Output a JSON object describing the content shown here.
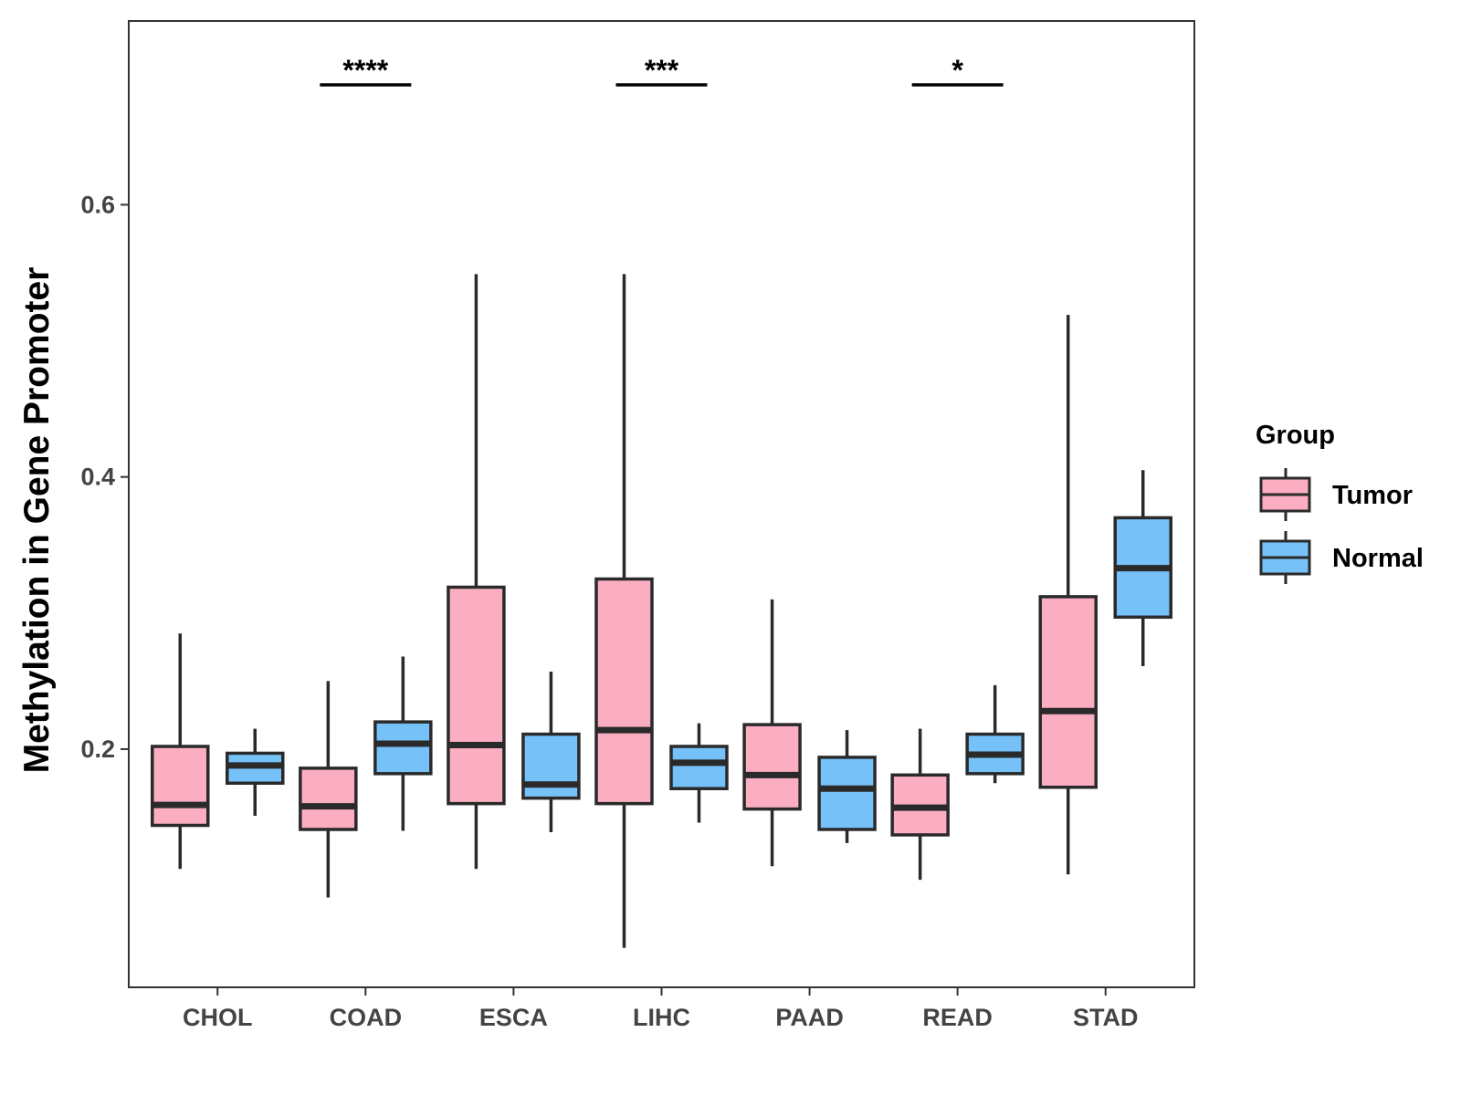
{
  "chart_data": {
    "type": "boxplot",
    "title": "",
    "xlabel": "",
    "ylabel": "Methylation in Gene Promoter",
    "ylim": [
      0.025,
      0.735
    ],
    "yticks": [
      0.2,
      0.4,
      0.6
    ],
    "ytick_labels": [
      "0.2",
      "0.4",
      "0.6"
    ],
    "categories": [
      "CHOL",
      "COAD",
      "ESCA",
      "LIHC",
      "PAAD",
      "READ",
      "STAD"
    ],
    "series": [
      {
        "name": "Tumor",
        "color": "#FBAEC1",
        "boxes": [
          {
            "min": 0.112,
            "q1": 0.144,
            "median": 0.159,
            "q3": 0.202,
            "max": 0.285
          },
          {
            "min": 0.091,
            "q1": 0.141,
            "median": 0.158,
            "q3": 0.186,
            "max": 0.25
          },
          {
            "min": 0.112,
            "q1": 0.16,
            "median": 0.203,
            "q3": 0.319,
            "max": 0.549
          },
          {
            "min": 0.054,
            "q1": 0.16,
            "median": 0.214,
            "q3": 0.325,
            "max": 0.549
          },
          {
            "min": 0.114,
            "q1": 0.156,
            "median": 0.181,
            "q3": 0.218,
            "max": 0.31
          },
          {
            "min": 0.104,
            "q1": 0.137,
            "median": 0.157,
            "q3": 0.181,
            "max": 0.215
          },
          {
            "min": 0.108,
            "q1": 0.172,
            "median": 0.228,
            "q3": 0.312,
            "max": 0.519
          }
        ]
      },
      {
        "name": "Normal",
        "color": "#76C1F8",
        "boxes": [
          {
            "min": 0.151,
            "q1": 0.175,
            "median": 0.188,
            "q3": 0.197,
            "max": 0.215
          },
          {
            "min": 0.14,
            "q1": 0.182,
            "median": 0.204,
            "q3": 0.22,
            "max": 0.268
          },
          {
            "min": 0.139,
            "q1": 0.164,
            "median": 0.174,
            "q3": 0.211,
            "max": 0.257
          },
          {
            "min": 0.146,
            "q1": 0.171,
            "median": 0.19,
            "q3": 0.202,
            "max": 0.219
          },
          {
            "min": 0.131,
            "q1": 0.141,
            "median": 0.171,
            "q3": 0.194,
            "max": 0.214
          },
          {
            "min": 0.175,
            "q1": 0.182,
            "median": 0.196,
            "q3": 0.211,
            "max": 0.247
          },
          {
            "min": 0.261,
            "q1": 0.297,
            "median": 0.333,
            "q3": 0.37,
            "max": 0.405
          }
        ]
      }
    ],
    "annotations": [
      {
        "category": "COAD",
        "label": "****"
      },
      {
        "category": "LIHC",
        "label": "***"
      },
      {
        "category": "READ",
        "label": "*"
      }
    ],
    "legend": {
      "title": "Group",
      "position": "right",
      "items": [
        "Tumor",
        "Normal"
      ]
    },
    "grid": false
  }
}
